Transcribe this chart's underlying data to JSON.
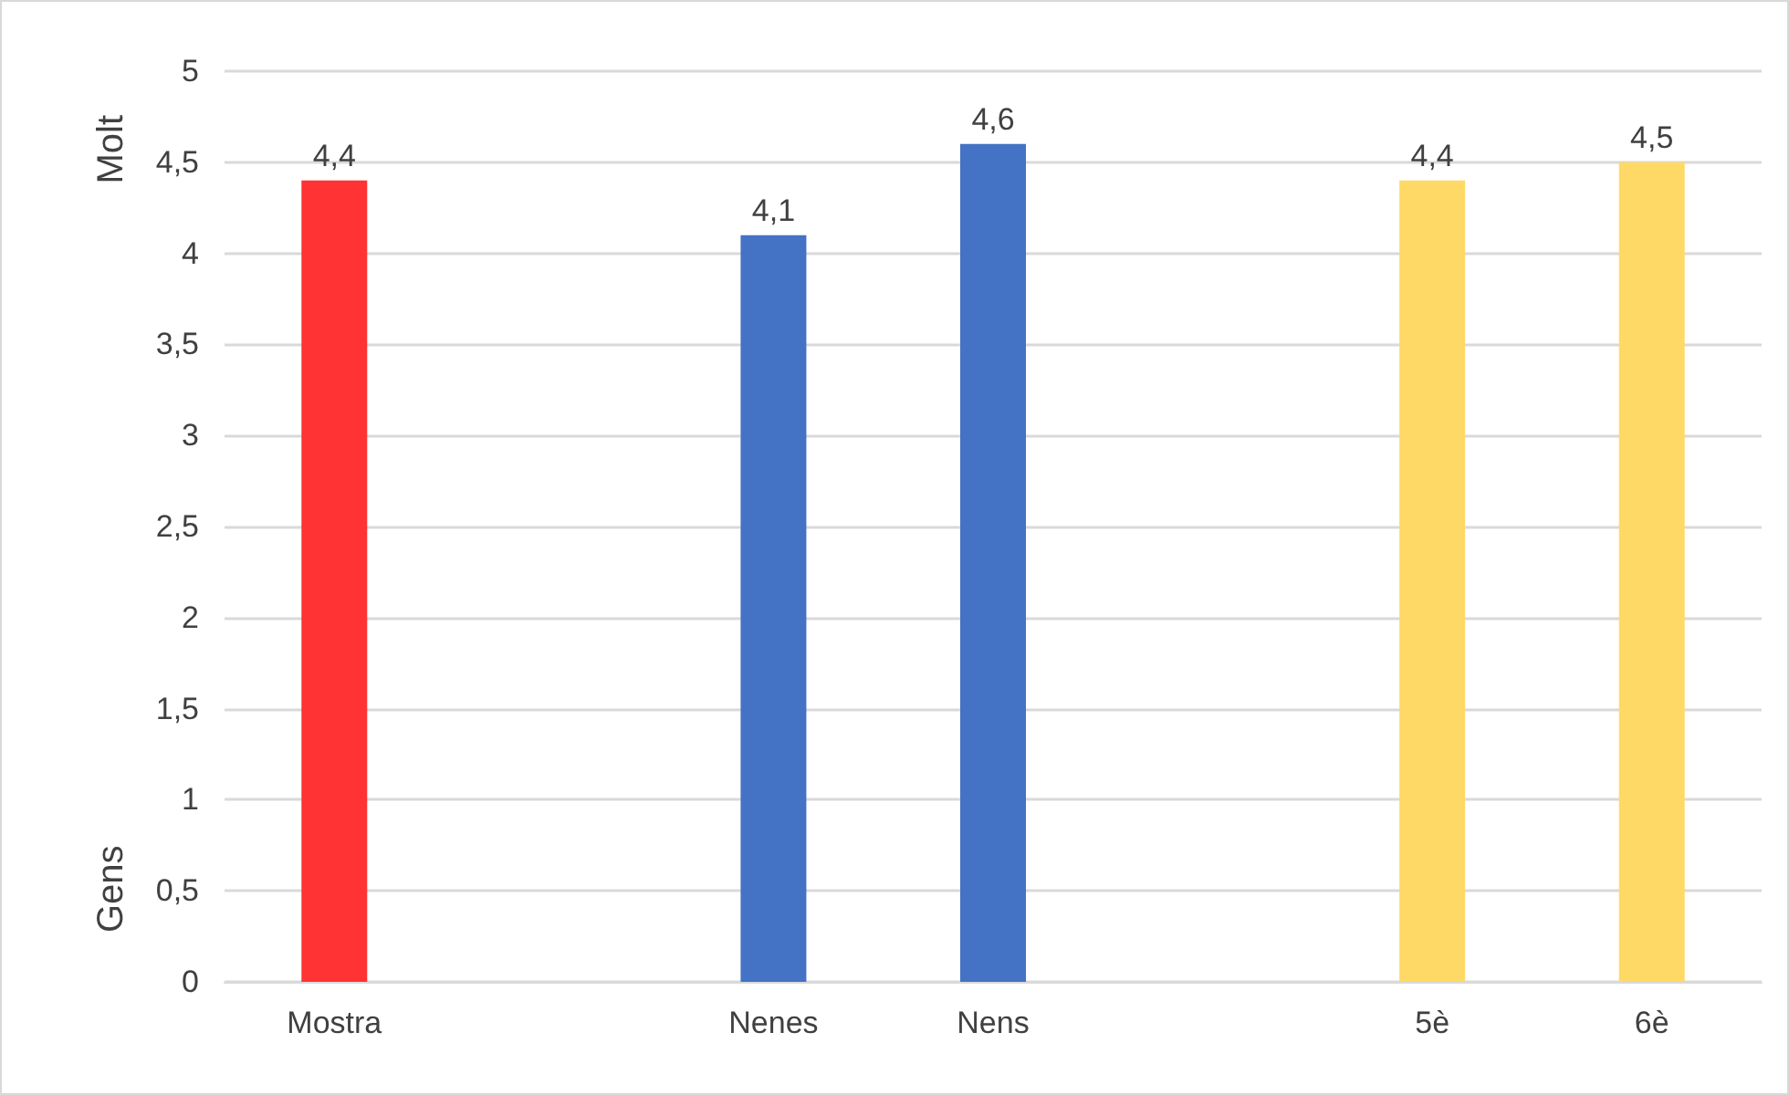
{
  "chart_data": {
    "type": "bar",
    "categories": [
      "Mostra",
      null,
      "Nenes",
      "Nens",
      null,
      "5è",
      "6è"
    ],
    "values": [
      4.4,
      null,
      4.1,
      4.6,
      null,
      4.4,
      4.5
    ],
    "colors": [
      "#ff3333",
      null,
      "#4472c4",
      "#4472c4",
      null,
      "#ffd966",
      "#ffd966"
    ],
    "value_labels": [
      "4,4",
      null,
      "4,1",
      "4,6",
      null,
      "4,4",
      "4,5"
    ],
    "ylim": [
      0,
      5
    ],
    "yticks": [
      0,
      {
        "value": 0.5,
        "label": "0,5"
      },
      1,
      {
        "value": 1.5,
        "label": "1,5"
      },
      2,
      {
        "value": 2.5,
        "label": "2,5"
      },
      3,
      {
        "value": 3.5,
        "label": "3,5"
      },
      4,
      {
        "value": 4.5,
        "label": "4,5"
      },
      5
    ],
    "annotations": [
      "Molt",
      "Gens"
    ],
    "grid": "y"
  }
}
